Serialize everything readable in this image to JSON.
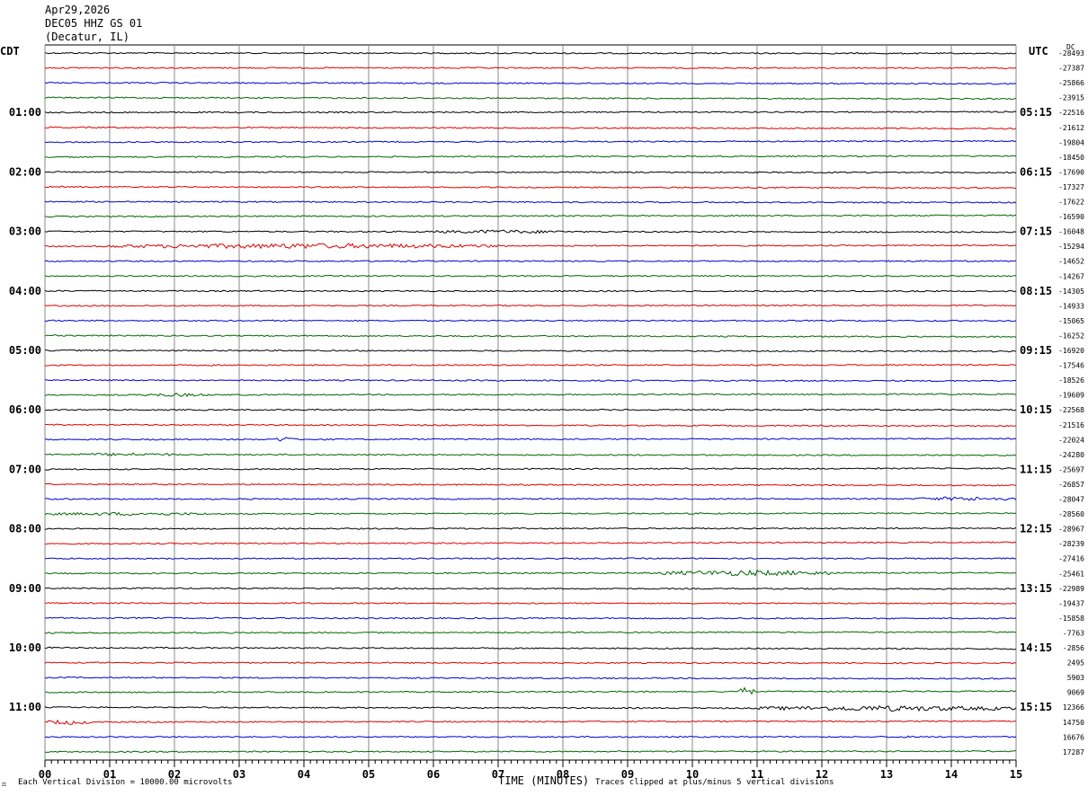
{
  "header": {
    "date": "Apr29,2026",
    "station": "DEC05 HHZ GS 01",
    "location": "(Decatur, IL)"
  },
  "left_tz": "CDT",
  "right_tz": "UTC",
  "dc_label": "DC",
  "footer": {
    "vertical_division": "Each Vertical Division = 10000.00 microvolts",
    "clip_note": "Traces clipped at plus/minus 5 vertical divisions",
    "corner_mark": "⚖"
  },
  "colors": {
    "trace_cycle": [
      "#000000",
      "#dd0000",
      "#0000cc",
      "#006600"
    ],
    "grid": "#888888"
  },
  "chart_data": {
    "type": "line",
    "xlabel": "TIME (MINUTES)",
    "xlim": [
      0,
      15
    ],
    "x_ticks": [
      "00",
      "01",
      "02",
      "03",
      "04",
      "05",
      "06",
      "07",
      "08",
      "09",
      "10",
      "11",
      "12",
      "13",
      "14",
      "15"
    ],
    "row_count": 48,
    "left_hour_labels": [
      {
        "row": 4,
        "label": "01:00"
      },
      {
        "row": 8,
        "label": "02:00"
      },
      {
        "row": 12,
        "label": "03:00"
      },
      {
        "row": 16,
        "label": "04:00"
      },
      {
        "row": 20,
        "label": "05:00"
      },
      {
        "row": 24,
        "label": "06:00"
      },
      {
        "row": 28,
        "label": "07:00"
      },
      {
        "row": 32,
        "label": "08:00"
      },
      {
        "row": 36,
        "label": "09:00"
      },
      {
        "row": 40,
        "label": "10:00"
      },
      {
        "row": 44,
        "label": "11:00"
      }
    ],
    "right_hour_labels": [
      {
        "row": 4,
        "label": "05:15"
      },
      {
        "row": 8,
        "label": "06:15"
      },
      {
        "row": 12,
        "label": "07:15"
      },
      {
        "row": 16,
        "label": "08:15"
      },
      {
        "row": 20,
        "label": "09:15"
      },
      {
        "row": 24,
        "label": "10:15"
      },
      {
        "row": 28,
        "label": "11:15"
      },
      {
        "row": 32,
        "label": "12:15"
      },
      {
        "row": 36,
        "label": "13:15"
      },
      {
        "row": 40,
        "label": "14:15"
      },
      {
        "row": 44,
        "label": "15:15"
      }
    ],
    "row_offsets": [
      "-28493",
      "-27387",
      "-25866",
      "-23915",
      "-22516",
      "-21612",
      "-19804",
      "-18450",
      "-17690",
      "-17327",
      "-17622",
      "-16590",
      "-16048",
      "-15294",
      "-14652",
      "-14267",
      "-14305",
      "-14933",
      "-15065",
      "-16252",
      "-16920",
      "-17546",
      "-18526",
      "-19609",
      "-22568",
      "-21516",
      "-22024",
      "-24280",
      "-25697",
      "-26857",
      "-28047",
      "-28560",
      "-28967",
      "-28239",
      "-27416",
      "-25461",
      "-22989",
      "-19437",
      "-15858",
      "-7763",
      "-2856",
      "2495",
      "5903",
      "9069",
      "12366",
      "14750",
      "16676",
      "17287"
    ],
    "events": [
      {
        "row": 12,
        "start_min": 6.0,
        "end_min": 8.0,
        "amp": 1.8
      },
      {
        "row": 13,
        "start_min": 1.0,
        "end_min": 7.0,
        "amp": 2.8
      },
      {
        "row": 27,
        "start_min": 0.5,
        "end_min": 2.0,
        "amp": 1.4
      },
      {
        "row": 26,
        "start_min": 3.55,
        "end_min": 3.85,
        "amp": 3.0
      },
      {
        "row": 23,
        "start_min": 1.5,
        "end_min": 2.5,
        "amp": 1.6
      },
      {
        "row": 30,
        "start_min": 13.5,
        "end_min": 15.0,
        "amp": 2.0
      },
      {
        "row": 31,
        "start_min": 0.0,
        "end_min": 2.5,
        "amp": 1.4
      },
      {
        "row": 35,
        "start_min": 9.5,
        "end_min": 12.2,
        "amp": 3.2
      },
      {
        "row": 43,
        "start_min": 10.7,
        "end_min": 10.95,
        "amp": 5.0
      },
      {
        "row": 44,
        "start_min": 11.0,
        "end_min": 15.0,
        "amp": 3.0
      },
      {
        "row": 45,
        "start_min": 0.0,
        "end_min": 0.7,
        "amp": 2.6
      },
      {
        "row": 46,
        "start_min": 13.15,
        "end_min": 13.35,
        "amp": 2.0
      }
    ]
  }
}
